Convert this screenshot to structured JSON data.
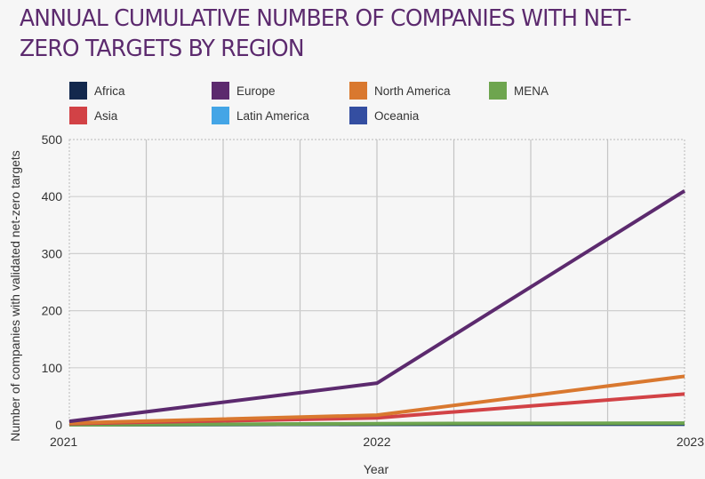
{
  "chart_data": {
    "type": "line",
    "title": "ANNUAL CUMULATIVE NUMBER OF COMPANIES WITH NET-ZERO TARGETS BY REGION",
    "xlabel": "Year",
    "ylabel": "Number of companies with validated net-zero targets",
    "x": [
      "2021",
      "2022",
      "2023"
    ],
    "yticks": [
      0,
      100,
      200,
      300,
      400,
      500
    ],
    "ylim": [
      0,
      500
    ],
    "grid": true,
    "legend_position": "top",
    "series": [
      {
        "name": "Africa",
        "color": "#13284d",
        "values": [
          0,
          1,
          2
        ]
      },
      {
        "name": "Asia",
        "color": "#d24246",
        "values": [
          2,
          12,
          54
        ]
      },
      {
        "name": "Europe",
        "color": "#5c2a6e",
        "values": [
          6,
          73,
          410
        ]
      },
      {
        "name": "Latin America",
        "color": "#44a5e6",
        "values": [
          0,
          1,
          2
        ]
      },
      {
        "name": "North America",
        "color": "#d9782f",
        "values": [
          3,
          17,
          85
        ]
      },
      {
        "name": "MENA",
        "color": "#6ea54f",
        "values": [
          0,
          2,
          3
        ]
      },
      {
        "name": "Oceania",
        "color": "#344ea1",
        "values": [
          0,
          1,
          1
        ]
      }
    ],
    "legend_order": [
      "Africa",
      "Europe",
      "North America",
      "MENA",
      "Asia",
      "Latin America",
      "Oceania"
    ]
  }
}
